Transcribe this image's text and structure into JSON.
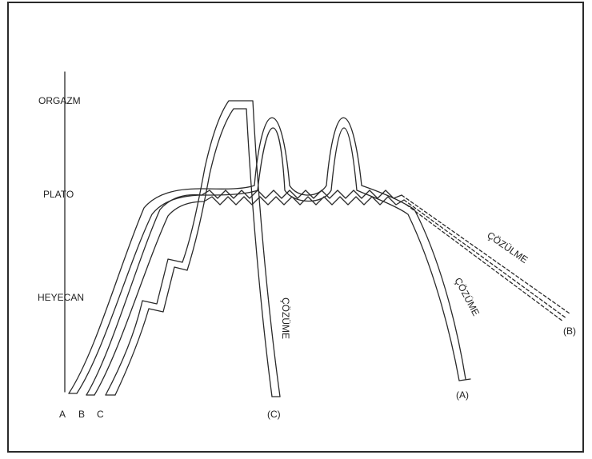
{
  "stages": {
    "orgasm": "ORGAZM",
    "plateau": "PLATO",
    "excitement": "HEYECAN"
  },
  "start_labels": {
    "a": "A",
    "b": "B",
    "c": "C"
  },
  "end_labels": {
    "a": "(A)",
    "b": "(B)",
    "c": "(C)"
  },
  "resolution_labels": {
    "c": "ÇÖZÜME",
    "a": "ÇÖZÜME",
    "b": "ÇÖZÜLME"
  },
  "colors": {
    "line": "#2a2a2a",
    "text": "#222222"
  }
}
